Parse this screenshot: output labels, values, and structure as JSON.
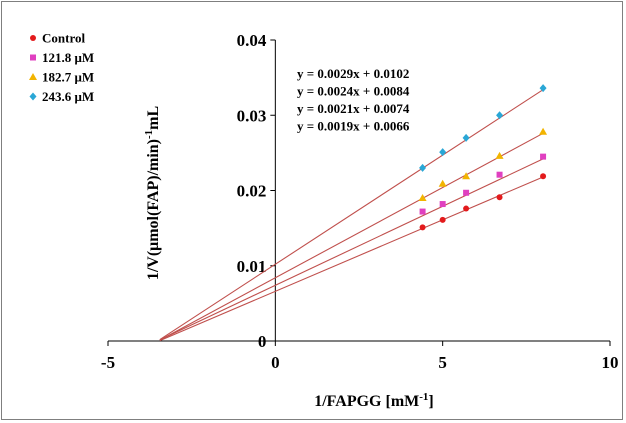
{
  "chart_data": {
    "type": "scatter",
    "title": "",
    "xlabel": "1/FAPGG  [mM",
    "xlabel_sup": "-1",
    "xlabel_end": "]",
    "ylabel": "1/V(μmol(FAP)/min)",
    "ylabel_sup": "-1",
    "ylabel_end": "mL",
    "xlim": [
      -5,
      10
    ],
    "ylim": [
      0,
      0.04
    ],
    "xticks": [
      -5,
      0,
      5,
      10
    ],
    "yticks": [
      0,
      0.01,
      0.02,
      0.03,
      0.04
    ],
    "xtick_labels": [
      "-5",
      "0",
      "5",
      "10"
    ],
    "ytick_labels": [
      "0",
      "0.01",
      "0.02",
      "0.03",
      "0.04"
    ],
    "grid": false,
    "legend_position": "top-left",
    "series": [
      {
        "name": "Control",
        "color": "#e31a1c",
        "marker": "circle",
        "x": [
          4.4,
          5.0,
          5.7,
          6.7,
          8.0
        ],
        "y": [
          0.0151,
          0.0161,
          0.0176,
          0.0191,
          0.0219
        ],
        "fit": {
          "slope": 0.0019,
          "intercept": 0.0066,
          "x_start": -3.45,
          "x_end": 8.0
        }
      },
      {
        "name": "121.8 μM",
        "color": "#e040c0",
        "marker": "square",
        "x": [
          4.4,
          5.0,
          5.7,
          6.7,
          8.0
        ],
        "y": [
          0.0172,
          0.0182,
          0.0197,
          0.0221,
          0.0245
        ],
        "fit": {
          "slope": 0.0021,
          "intercept": 0.0074,
          "x_start": -3.45,
          "x_end": 8.0
        }
      },
      {
        "name": "182.7 μM",
        "color": "#f2b400",
        "marker": "triangle",
        "x": [
          4.4,
          5.0,
          5.7,
          6.7,
          8.0
        ],
        "y": [
          0.019,
          0.0209,
          0.0219,
          0.0246,
          0.0278
        ],
        "fit": {
          "slope": 0.0024,
          "intercept": 0.0084,
          "x_start": -3.45,
          "x_end": 8.0
        }
      },
      {
        "name": "243.6 μM",
        "color": "#2aa7d6",
        "marker": "diamond",
        "x": [
          4.4,
          5.0,
          5.7,
          6.7,
          8.0
        ],
        "y": [
          0.023,
          0.0251,
          0.027,
          0.03,
          0.0336
        ],
        "fit": {
          "slope": 0.0029,
          "intercept": 0.0102,
          "x_start": -3.45,
          "x_end": 8.0
        }
      }
    ],
    "fit_line_color": "#c0504d",
    "annotations": [
      "y = 0.0029x + 0.0102",
      "y = 0.0024x + 0.0084",
      "y = 0.0021x + 0.0074",
      "y = 0.0019x + 0.0066"
    ]
  }
}
